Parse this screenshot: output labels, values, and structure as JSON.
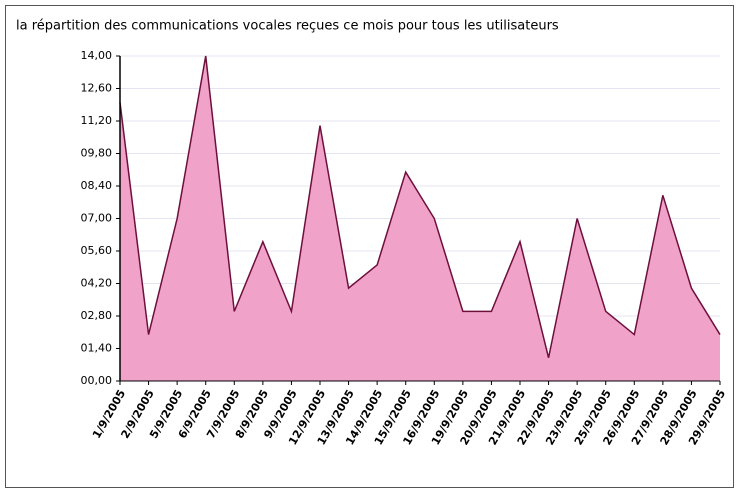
{
  "chart_data": {
    "type": "area",
    "title": "la répartition des communications vocales reçues ce mois pour tous les utilisateurs",
    "categories": [
      "1/9/2005",
      "2/9/2005",
      "5/9/2005",
      "6/9/2005",
      "7/9/2005",
      "8/9/2005",
      "9/9/2005",
      "12/9/2005",
      "13/9/2005",
      "14/9/2005",
      "15/9/2005",
      "16/9/2005",
      "19/9/2005",
      "20/9/2005",
      "21/9/2005",
      "22/9/2005",
      "23/9/2005",
      "25/9/2005",
      "26/9/2005",
      "27/9/2005",
      "28/9/2005",
      "29/9/2005"
    ],
    "series": [
      {
        "color": "#f0a2c8",
        "values": [
          12,
          2,
          7,
          14,
          3,
          6,
          3,
          11,
          4,
          5,
          9,
          7,
          3,
          3,
          6,
          1,
          7,
          3,
          2,
          8,
          4,
          2
        ]
      }
    ],
    "ylim": [
      0,
      14
    ],
    "yticks": [
      {
        "value": 0,
        "label": "00,00"
      },
      {
        "value": 1.4,
        "label": "01,40"
      },
      {
        "value": 2.8,
        "label": "02,80"
      },
      {
        "value": 4.2,
        "label": "04,20"
      },
      {
        "value": 5.6,
        "label": "05,60"
      },
      {
        "value": 7,
        "label": "07,00"
      },
      {
        "value": 8.4,
        "label": "08,40"
      },
      {
        "value": 9.8,
        "label": "09,80"
      },
      {
        "value": 11.2,
        "label": "11,20"
      },
      {
        "value": 12.6,
        "label": "12,60"
      },
      {
        "value": 14,
        "label": "14,00"
      }
    ],
    "grid": true
  }
}
